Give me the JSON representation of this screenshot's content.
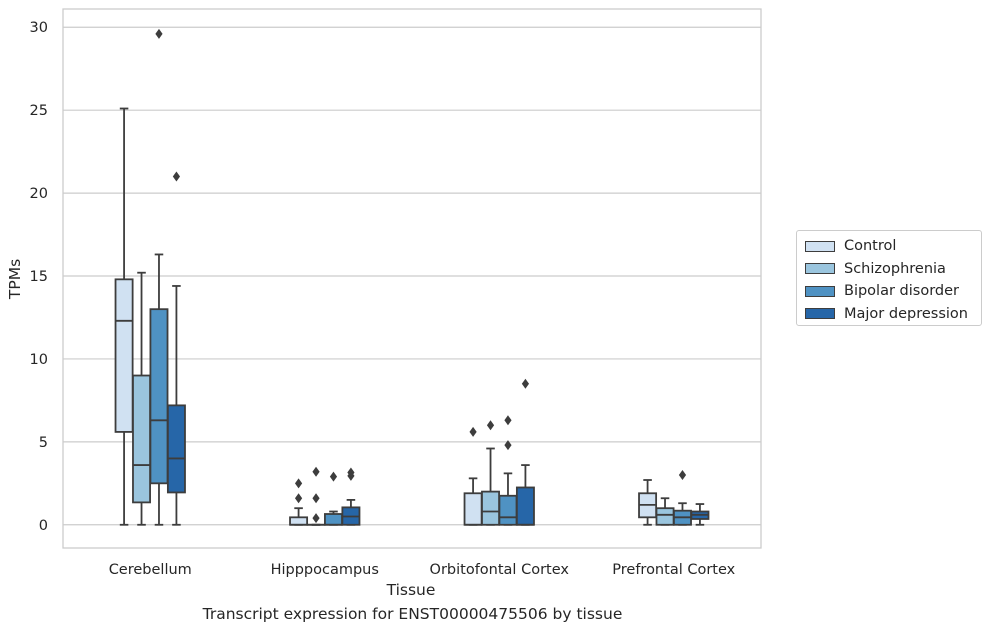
{
  "caption": "Transcript expression for ENST00000475506 by tissue",
  "chart_data": {
    "type": "boxplot",
    "xlabel": "Tissue",
    "ylabel": "TPMs",
    "ylim": [
      -1.4,
      31.1
    ],
    "yticks": [
      0,
      5,
      10,
      15,
      20,
      25,
      30
    ],
    "grid": "horizontal",
    "legend_position": "right",
    "categories": [
      "Cerebellum",
      "Hipppocampus",
      "Orbitofontal Cortex",
      "Prefrontal Cortex"
    ],
    "series": [
      {
        "name": "Control",
        "color": "#d0e1f2",
        "boxes": [
          {
            "whislo": 0.0,
            "q1": 5.6,
            "med": 12.3,
            "q3": 14.8,
            "whishi": 25.1,
            "fliers": []
          },
          {
            "whislo": 0.0,
            "q1": 0.0,
            "med": 0.0,
            "q3": 0.45,
            "whishi": 1.0,
            "fliers": [
              1.6,
              2.5
            ]
          },
          {
            "whislo": 0.0,
            "q1": 0.0,
            "med": 0.0,
            "q3": 1.9,
            "whishi": 2.8,
            "fliers": [
              5.6
            ]
          },
          {
            "whislo": 0.0,
            "q1": 0.45,
            "med": 1.2,
            "q3": 1.9,
            "whishi": 2.7,
            "fliers": []
          }
        ]
      },
      {
        "name": "Schizophrenia",
        "color": "#9ac5de",
        "boxes": [
          {
            "whislo": 0.0,
            "q1": 1.35,
            "med": 3.6,
            "q3": 9.0,
            "whishi": 15.2,
            "fliers": []
          },
          {
            "whislo": 0.0,
            "q1": 0.0,
            "med": 0.0,
            "q3": 0.0,
            "whishi": 0.0,
            "fliers": [
              0.4,
              1.6,
              3.2
            ]
          },
          {
            "whislo": 0.0,
            "q1": 0.0,
            "med": 0.8,
            "q3": 2.0,
            "whishi": 4.6,
            "fliers": [
              6.0
            ]
          },
          {
            "whislo": 0.0,
            "q1": 0.0,
            "med": 0.6,
            "q3": 1.0,
            "whishi": 1.6,
            "fliers": []
          }
        ]
      },
      {
        "name": "Bipolar disorder",
        "color": "#4f92c3",
        "boxes": [
          {
            "whislo": 0.0,
            "q1": 2.5,
            "med": 6.3,
            "q3": 13.0,
            "whishi": 16.3,
            "fliers": [
              29.6
            ]
          },
          {
            "whislo": 0.0,
            "q1": 0.0,
            "med": 0.0,
            "q3": 0.65,
            "whishi": 0.8,
            "fliers": [
              2.9
            ]
          },
          {
            "whislo": 0.0,
            "q1": 0.0,
            "med": 0.45,
            "q3": 1.75,
            "whishi": 3.1,
            "fliers": [
              4.8,
              6.3
            ]
          },
          {
            "whislo": 0.0,
            "q1": 0.0,
            "med": 0.45,
            "q3": 0.85,
            "whishi": 1.3,
            "fliers": [
              3.0
            ]
          }
        ]
      },
      {
        "name": "Major depression",
        "color": "#2666a8",
        "boxes": [
          {
            "whislo": 0.0,
            "q1": 1.95,
            "med": 4.0,
            "q3": 7.2,
            "whishi": 14.4,
            "fliers": [
              21.0
            ]
          },
          {
            "whislo": 0.0,
            "q1": 0.0,
            "med": 0.5,
            "q3": 1.05,
            "whishi": 1.5,
            "fliers": [
              2.95,
              3.15
            ]
          },
          {
            "whislo": 0.0,
            "q1": 0.0,
            "med": 0.0,
            "q3": 2.25,
            "whishi": 3.6,
            "fliers": [
              8.5
            ]
          },
          {
            "whislo": 0.0,
            "q1": 0.35,
            "med": 0.6,
            "q3": 0.8,
            "whishi": 1.25,
            "fliers": []
          }
        ]
      }
    ]
  }
}
